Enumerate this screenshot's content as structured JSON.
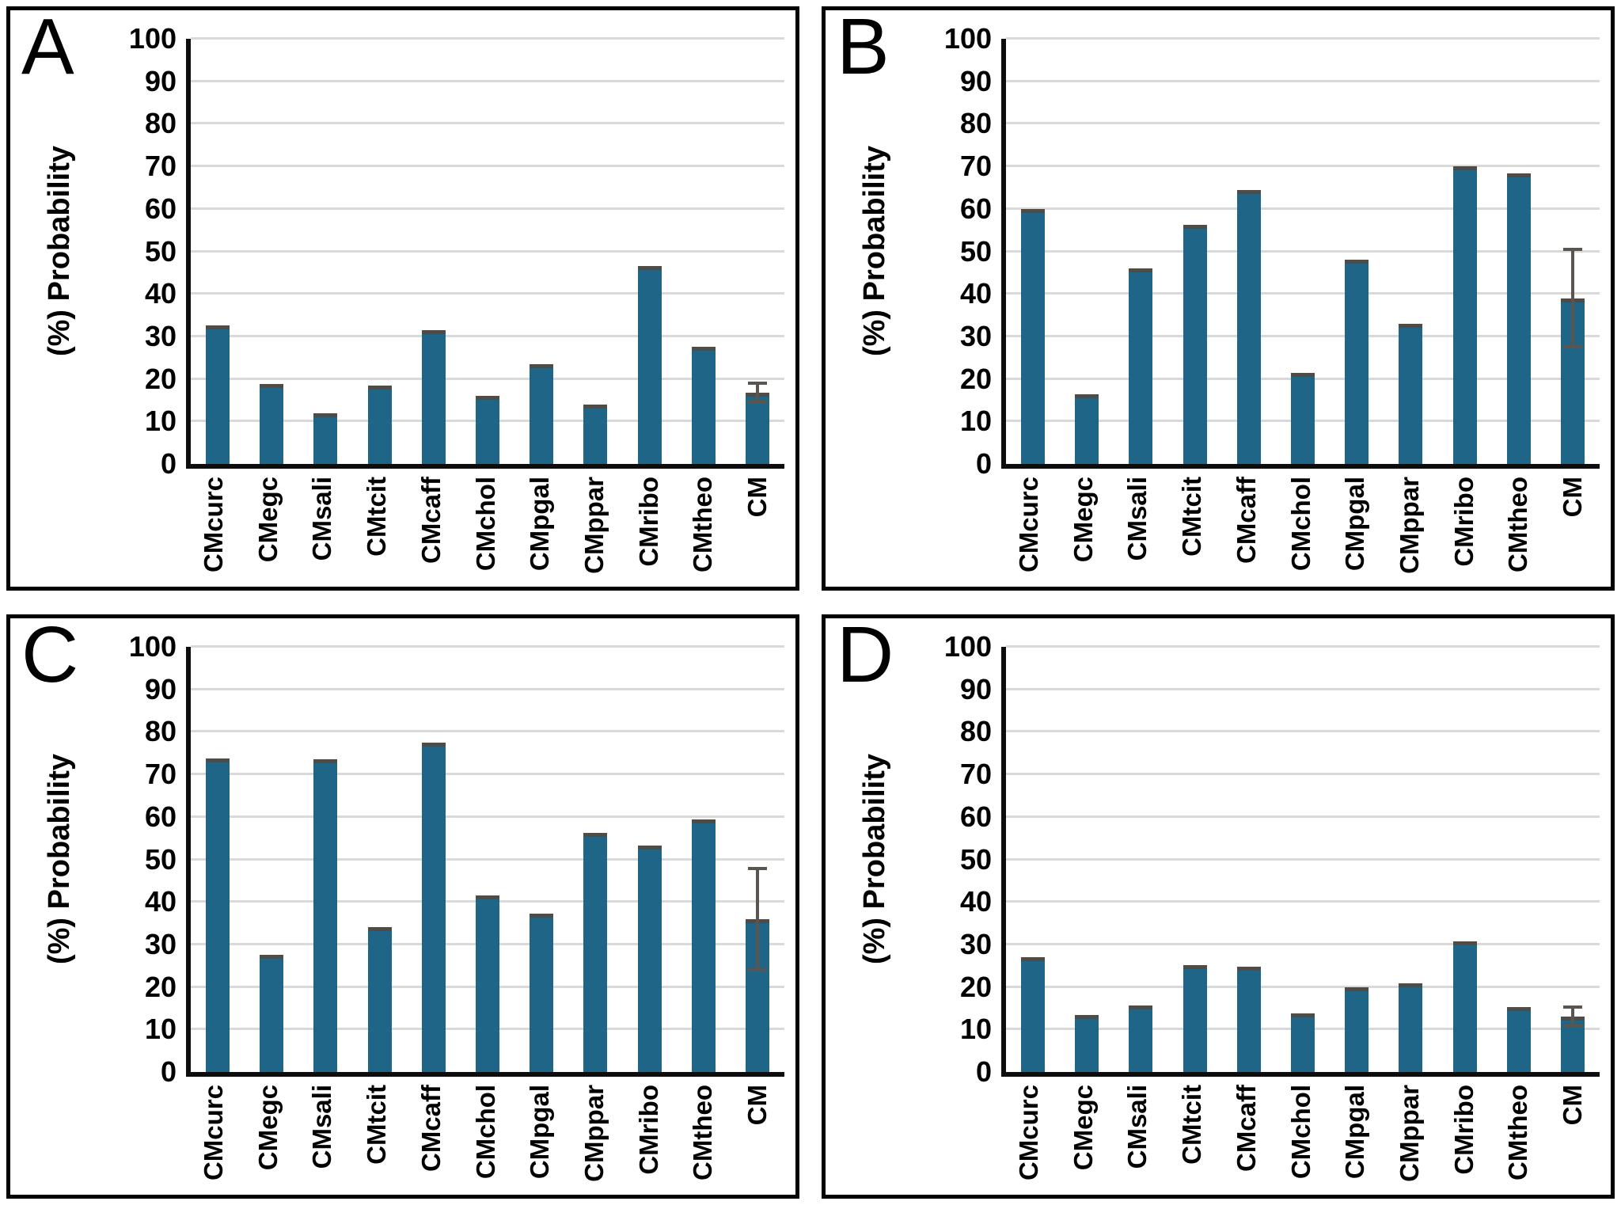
{
  "figure": {
    "y_ticks": [
      0,
      10,
      20,
      30,
      40,
      50,
      60,
      70,
      80,
      90,
      100
    ],
    "panel_letters": [
      "A",
      "B",
      "C",
      "D"
    ]
  },
  "colors": {
    "bar": "#1f6588",
    "bar_cap": "#504b45",
    "error_bar": "#5a564f",
    "gridline": "#d9d9d9",
    "axis": "#0d0d0d",
    "panel_border": "#000000",
    "background": "#ffffff"
  },
  "chart_data": [
    {
      "type": "bar",
      "panel": "A",
      "ylabel": "(%) Probability",
      "ylim": [
        0,
        100
      ],
      "grid": true,
      "categories": [
        "CMcurc",
        "CMegc",
        "CMsali",
        "CMtcit",
        "CMcaff",
        "CMchol",
        "CMpgal",
        "CMppar",
        "CMribo",
        "CMtheo",
        "CM"
      ],
      "values": [
        32.5,
        18.8,
        12.0,
        18.5,
        31.5,
        16.0,
        23.5,
        14.0,
        46.5,
        27.5,
        16.8
      ],
      "errors": [
        0,
        0,
        0,
        0,
        0,
        0,
        0,
        0,
        0,
        0,
        2.6
      ]
    },
    {
      "type": "bar",
      "panel": "B",
      "ylabel": "(%) Probability",
      "ylim": [
        0,
        100
      ],
      "grid": true,
      "categories": [
        "CMcurc",
        "CMegc",
        "CMsali",
        "CMtcit",
        "CMcaff",
        "CMchol",
        "CMpgal",
        "CMppar",
        "CMribo",
        "CMtheo",
        "CM"
      ],
      "values": [
        60.0,
        16.4,
        46.0,
        56.3,
        64.5,
        21.5,
        48.0,
        33.0,
        70.0,
        68.3,
        39.0
      ],
      "errors": [
        0,
        0,
        0,
        0,
        0,
        0,
        0,
        0,
        0,
        0,
        11.8
      ]
    },
    {
      "type": "bar",
      "panel": "C",
      "ylabel": "(%) Probability",
      "ylim": [
        0,
        100
      ],
      "grid": true,
      "categories": [
        "CMcurc",
        "CMegc",
        "CMsali",
        "CMtcit",
        "CMcaff",
        "CMchol",
        "CMpgal",
        "CMppar",
        "CMribo",
        "CMtheo",
        "CM"
      ],
      "values": [
        73.7,
        27.6,
        73.6,
        34.0,
        77.5,
        41.5,
        37.2,
        56.3,
        53.2,
        59.4,
        36.0
      ],
      "errors": [
        0,
        0,
        0,
        0,
        0,
        0,
        0,
        0,
        0,
        0,
        12.3
      ]
    },
    {
      "type": "bar",
      "panel": "D",
      "ylabel": "(%) Probability",
      "ylim": [
        0,
        100
      ],
      "grid": true,
      "categories": [
        "CMcurc",
        "CMegc",
        "CMsali",
        "CMtcit",
        "CMcaff",
        "CMchol",
        "CMpgal",
        "CMppar",
        "CMribo",
        "CMtheo",
        "CM"
      ],
      "values": [
        27.0,
        13.4,
        15.6,
        25.1,
        24.7,
        13.7,
        19.9,
        20.9,
        30.8,
        15.2,
        13.1
      ],
      "errors": [
        0,
        0,
        0,
        0,
        0,
        0,
        0,
        0,
        0,
        0,
        2.6
      ]
    }
  ]
}
